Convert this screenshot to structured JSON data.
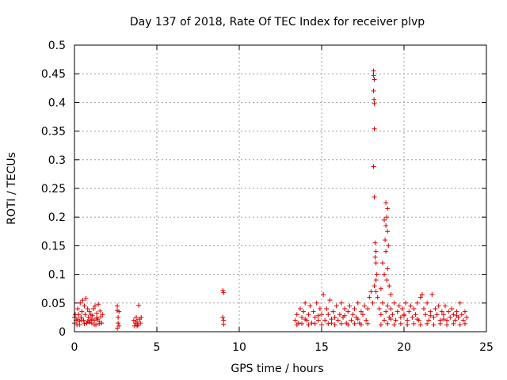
{
  "chart_data": {
    "type": "scatter",
    "title": "Day 137 of 2018, Rate Of TEC Index for receiver plvp",
    "xlabel": "GPS time / hours",
    "ylabel": "ROTI / TECUs",
    "xlim": [
      0,
      25
    ],
    "ylim": [
      0,
      0.5
    ],
    "xticks": [
      0,
      5,
      10,
      15,
      20,
      25
    ],
    "xtick_labels": [
      "0",
      "5",
      "10",
      "15",
      "20",
      "25"
    ],
    "yticks": [
      0,
      0.05,
      0.1,
      0.15,
      0.2,
      0.25,
      0.3,
      0.35,
      0.4,
      0.45,
      0.5
    ],
    "ytick_labels": [
      "0",
      "0.05",
      "0.1",
      "0.15",
      "0.2",
      "0.25",
      "0.3",
      "0.35",
      "0.4",
      "0.45",
      "0.5"
    ],
    "grid": true,
    "marker": "+",
    "color": "#e00000",
    "series": [
      {
        "name": "ROTI",
        "points": [
          [
            0.0,
            0.015
          ],
          [
            0.0,
            0.025
          ],
          [
            0.05,
            0.03
          ],
          [
            0.1,
            0.02
          ],
          [
            0.15,
            0.012
          ],
          [
            0.2,
            0.04
          ],
          [
            0.25,
            0.03
          ],
          [
            0.3,
            0.018
          ],
          [
            0.35,
            0.05
          ],
          [
            0.4,
            0.025
          ],
          [
            0.45,
            0.035
          ],
          [
            0.5,
            0.055
          ],
          [
            0.55,
            0.02
          ],
          [
            0.6,
            0.045
          ],
          [
            0.65,
            0.03
          ],
          [
            0.7,
            0.058
          ],
          [
            0.75,
            0.015
          ],
          [
            0.8,
            0.04
          ],
          [
            0.85,
            0.025
          ],
          [
            0.9,
            0.035
          ],
          [
            0.95,
            0.02
          ],
          [
            1.0,
            0.03
          ],
          [
            1.05,
            0.015
          ],
          [
            1.1,
            0.028
          ],
          [
            1.15,
            0.04
          ],
          [
            1.2,
            0.02
          ],
          [
            1.25,
            0.045
          ],
          [
            1.3,
            0.012
          ],
          [
            1.35,
            0.032
          ],
          [
            1.4,
            0.022
          ],
          [
            1.45,
            0.048
          ],
          [
            1.5,
            0.018
          ],
          [
            1.55,
            0.036
          ],
          [
            1.6,
            0.026
          ],
          [
            1.65,
            0.015
          ],
          [
            1.7,
            0.03
          ],
          [
            0.3,
            0.012
          ],
          [
            0.6,
            0.014
          ],
          [
            0.9,
            0.016
          ],
          [
            1.2,
            0.012
          ],
          [
            1.5,
            0.014
          ],
          [
            0.45,
            0.02
          ],
          [
            1.05,
            0.022
          ],
          [
            1.35,
            0.024
          ],
          [
            0.2,
            0.022
          ],
          [
            0.8,
            0.018
          ],
          [
            2.6,
            0.045
          ],
          [
            2.6,
            0.037
          ],
          [
            2.65,
            0.025
          ],
          [
            2.65,
            0.015
          ],
          [
            2.7,
            0.01
          ],
          [
            2.6,
            0.006
          ],
          [
            2.7,
            0.035
          ],
          [
            3.6,
            0.02
          ],
          [
            3.7,
            0.015
          ],
          [
            3.75,
            0.025
          ],
          [
            3.8,
            0.018
          ],
          [
            3.85,
            0.012
          ],
          [
            3.9,
            0.046
          ],
          [
            3.95,
            0.022
          ],
          [
            4.0,
            0.015
          ],
          [
            4.05,
            0.025
          ],
          [
            3.65,
            0.01
          ],
          [
            3.8,
            0.01
          ],
          [
            9.0,
            0.072
          ],
          [
            9.05,
            0.068
          ],
          [
            9.0,
            0.025
          ],
          [
            9.05,
            0.02
          ],
          [
            9.05,
            0.013
          ],
          [
            13.4,
            0.02
          ],
          [
            13.5,
            0.03
          ],
          [
            13.6,
            0.015
          ],
          [
            13.7,
            0.04
          ],
          [
            13.8,
            0.025
          ],
          [
            13.9,
            0.035
          ],
          [
            14.0,
            0.05
          ],
          [
            14.1,
            0.02
          ],
          [
            14.2,
            0.03
          ],
          [
            14.3,
            0.045
          ],
          [
            14.4,
            0.015
          ],
          [
            14.5,
            0.035
          ],
          [
            14.6,
            0.025
          ],
          [
            14.7,
            0.05
          ],
          [
            14.8,
            0.02
          ],
          [
            14.9,
            0.04
          ],
          [
            15.0,
            0.03
          ],
          [
            15.1,
            0.065
          ],
          [
            15.2,
            0.02
          ],
          [
            15.3,
            0.04
          ],
          [
            15.4,
            0.03
          ],
          [
            15.5,
            0.055
          ],
          [
            15.6,
            0.015
          ],
          [
            15.7,
            0.035
          ],
          [
            15.8,
            0.025
          ],
          [
            15.9,
            0.045
          ],
          [
            16.0,
            0.02
          ],
          [
            16.1,
            0.03
          ],
          [
            16.2,
            0.05
          ],
          [
            16.3,
            0.025
          ],
          [
            16.4,
            0.04
          ],
          [
            16.5,
            0.015
          ],
          [
            16.6,
            0.035
          ],
          [
            16.7,
            0.045
          ],
          [
            16.8,
            0.02
          ],
          [
            16.9,
            0.03
          ],
          [
            17.0,
            0.04
          ],
          [
            17.1,
            0.025
          ],
          [
            17.2,
            0.05
          ],
          [
            17.3,
            0.015
          ],
          [
            17.4,
            0.035
          ],
          [
            17.5,
            0.03
          ],
          [
            17.6,
            0.045
          ],
          [
            17.7,
            0.02
          ],
          [
            17.8,
            0.04
          ],
          [
            17.9,
            0.06
          ],
          [
            18.0,
            0.07
          ],
          [
            18.1,
            0.05
          ],
          [
            13.5,
            0.012
          ],
          [
            13.8,
            0.014
          ],
          [
            14.2,
            0.012
          ],
          [
            14.6,
            0.014
          ],
          [
            15.0,
            0.012
          ],
          [
            15.4,
            0.014
          ],
          [
            15.8,
            0.012
          ],
          [
            16.2,
            0.014
          ],
          [
            16.6,
            0.012
          ],
          [
            17.0,
            0.014
          ],
          [
            17.4,
            0.012
          ],
          [
            17.8,
            0.014
          ],
          [
            14.0,
            0.022
          ],
          [
            14.8,
            0.028
          ],
          [
            15.6,
            0.022
          ],
          [
            16.4,
            0.028
          ],
          [
            17.2,
            0.022
          ],
          [
            18.15,
            0.455
          ],
          [
            18.15,
            0.447
          ],
          [
            18.2,
            0.44
          ],
          [
            18.15,
            0.42
          ],
          [
            18.18,
            0.405
          ],
          [
            18.2,
            0.398
          ],
          [
            18.2,
            0.354
          ],
          [
            18.15,
            0.288
          ],
          [
            18.2,
            0.235
          ],
          [
            18.25,
            0.155
          ],
          [
            18.3,
            0.14
          ],
          [
            18.25,
            0.13
          ],
          [
            18.3,
            0.12
          ],
          [
            18.35,
            0.1
          ],
          [
            18.3,
            0.09
          ],
          [
            18.2,
            0.08
          ],
          [
            18.3,
            0.07
          ],
          [
            18.4,
            0.06
          ],
          [
            18.9,
            0.225
          ],
          [
            19.0,
            0.215
          ],
          [
            18.95,
            0.2
          ],
          [
            18.8,
            0.195
          ],
          [
            18.9,
            0.185
          ],
          [
            19.0,
            0.175
          ],
          [
            18.85,
            0.16
          ],
          [
            19.05,
            0.15
          ],
          [
            18.9,
            0.14
          ],
          [
            18.7,
            0.12
          ],
          [
            19.0,
            0.11
          ],
          [
            18.8,
            0.1
          ],
          [
            18.95,
            0.09
          ],
          [
            19.1,
            0.08
          ],
          [
            18.6,
            0.075
          ],
          [
            19.2,
            0.065
          ],
          [
            18.5,
            0.04
          ],
          [
            18.6,
            0.03
          ],
          [
            18.7,
            0.05
          ],
          [
            18.8,
            0.02
          ],
          [
            18.9,
            0.035
          ],
          [
            19.0,
            0.045
          ],
          [
            19.1,
            0.025
          ],
          [
            19.2,
            0.04
          ],
          [
            19.3,
            0.03
          ],
          [
            19.4,
            0.05
          ],
          [
            19.5,
            0.02
          ],
          [
            19.6,
            0.035
          ],
          [
            19.7,
            0.045
          ],
          [
            19.8,
            0.025
          ],
          [
            19.9,
            0.04
          ],
          [
            20.0,
            0.03
          ],
          [
            20.1,
            0.05
          ],
          [
            20.2,
            0.02
          ],
          [
            20.3,
            0.035
          ],
          [
            20.4,
            0.045
          ],
          [
            20.5,
            0.025
          ],
          [
            20.6,
            0.04
          ],
          [
            20.7,
            0.03
          ],
          [
            20.8,
            0.05
          ],
          [
            20.9,
            0.02
          ],
          [
            21.0,
            0.06
          ],
          [
            21.1,
            0.065
          ],
          [
            21.2,
            0.04
          ],
          [
            21.3,
            0.03
          ],
          [
            21.4,
            0.05
          ],
          [
            21.5,
            0.02
          ],
          [
            21.6,
            0.035
          ],
          [
            21.7,
            0.065
          ],
          [
            21.8,
            0.025
          ],
          [
            21.9,
            0.04
          ],
          [
            22.0,
            0.03
          ],
          [
            22.1,
            0.045
          ],
          [
            22.2,
            0.02
          ],
          [
            22.3,
            0.035
          ],
          [
            22.4,
            0.03
          ],
          [
            22.5,
            0.045
          ],
          [
            22.6,
            0.02
          ],
          [
            22.7,
            0.035
          ],
          [
            22.8,
            0.025
          ],
          [
            22.9,
            0.04
          ],
          [
            23.0,
            0.03
          ],
          [
            23.1,
            0.02
          ],
          [
            23.2,
            0.035
          ],
          [
            23.3,
            0.025
          ],
          [
            23.4,
            0.05
          ],
          [
            23.5,
            0.03
          ],
          [
            23.6,
            0.02
          ],
          [
            23.7,
            0.035
          ],
          [
            23.8,
            0.025
          ],
          [
            18.6,
            0.012
          ],
          [
            19.0,
            0.014
          ],
          [
            19.4,
            0.012
          ],
          [
            19.8,
            0.014
          ],
          [
            20.2,
            0.012
          ],
          [
            20.6,
            0.014
          ],
          [
            21.0,
            0.012
          ],
          [
            21.4,
            0.014
          ],
          [
            21.8,
            0.012
          ],
          [
            22.2,
            0.014
          ],
          [
            22.6,
            0.012
          ],
          [
            23.0,
            0.014
          ],
          [
            23.4,
            0.012
          ],
          [
            23.7,
            0.014
          ],
          [
            19.2,
            0.022
          ],
          [
            20.0,
            0.028
          ],
          [
            20.8,
            0.022
          ],
          [
            21.6,
            0.028
          ],
          [
            22.4,
            0.022
          ],
          [
            23.2,
            0.028
          ]
        ]
      }
    ]
  }
}
